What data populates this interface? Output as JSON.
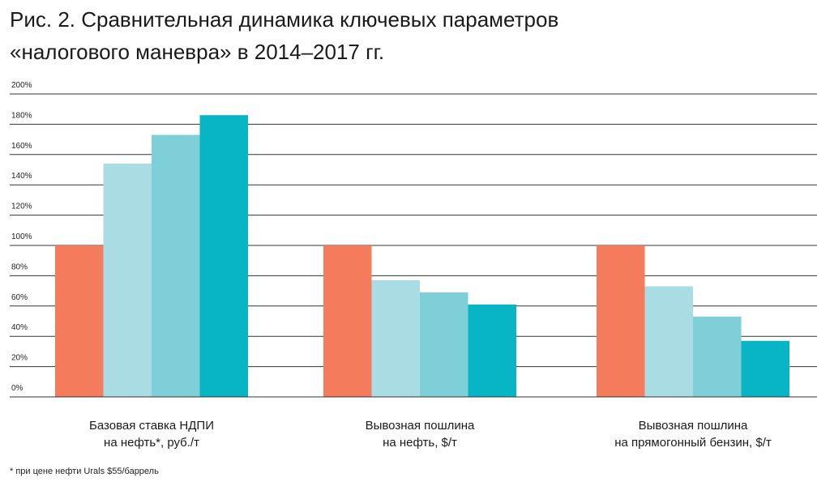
{
  "title_line1": "Рис. 2. Сравнительная динамика ключевых параметров",
  "title_line2": "«налогового маневра» в 2014–2017 гг.",
  "footnote": "* при цене нефти Urals $55/баррель",
  "chart_data": {
    "type": "bar",
    "categories": [
      [
        "Базовая ставка НДПИ",
        "на нефть*, руб./т"
      ],
      [
        "Вывозная пошлина",
        "на нефть, $/т"
      ],
      [
        "Вывозная пошлина",
        "на прямогонный бензин, $/т"
      ]
    ],
    "series": [
      {
        "values": [
          100,
          100,
          100
        ],
        "color": "#f47b5b"
      },
      {
        "values": [
          154,
          77,
          73
        ],
        "color": "#a9dde3"
      },
      {
        "values": [
          173,
          69,
          53
        ],
        "color": "#7fcfd8"
      },
      {
        "values": [
          186,
          61,
          37
        ],
        "color": "#08b5c4"
      }
    ],
    "ylim": [
      0,
      200
    ],
    "yticks": [
      "0%",
      "20%",
      "40%",
      "60%",
      "80%",
      "100%",
      "120%",
      "140%",
      "160%",
      "180%",
      "200%"
    ],
    "grid": true,
    "legend": "none"
  }
}
